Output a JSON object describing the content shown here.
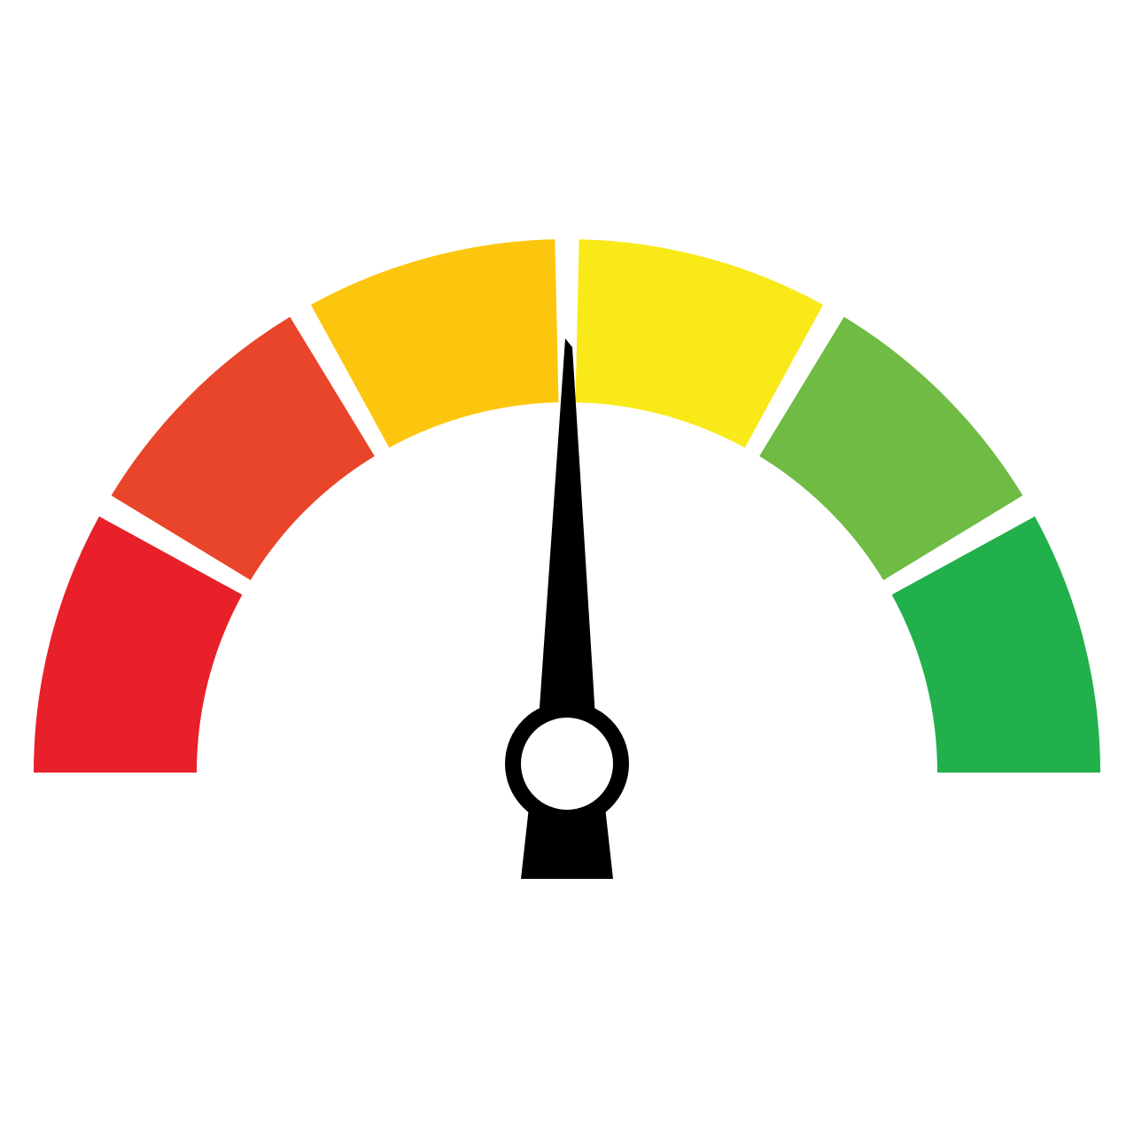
{
  "gauge": {
    "segment_count": 6,
    "segments": [
      {
        "name": "segment-1",
        "color": "#e8202a"
      },
      {
        "name": "segment-2",
        "color": "#e9452a"
      },
      {
        "name": "segment-3",
        "color": "#fdc60e"
      },
      {
        "name": "segment-4",
        "color": "#f9e918"
      },
      {
        "name": "segment-5",
        "color": "#6fbb44"
      },
      {
        "name": "segment-6",
        "color": "#21b04b"
      }
    ],
    "needle_level": 0.5,
    "needle_color": "#000000",
    "hub_inner_color": "#ffffff"
  }
}
